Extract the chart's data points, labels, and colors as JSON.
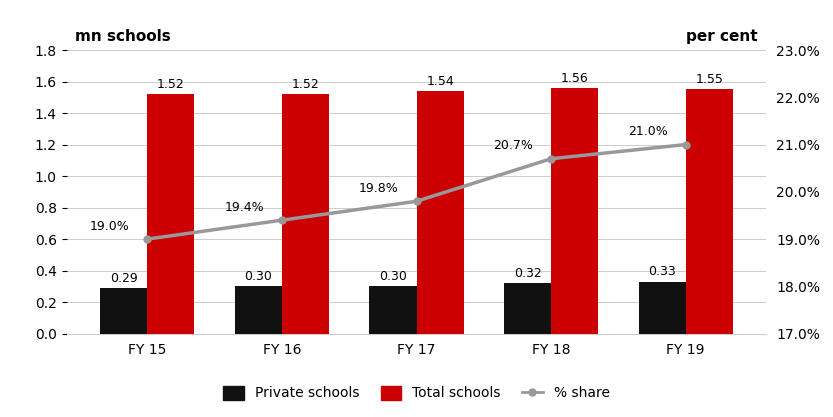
{
  "categories": [
    "FY 15",
    "FY 16",
    "FY 17",
    "FY 18",
    "FY 19"
  ],
  "private_schools": [
    0.29,
    0.3,
    0.3,
    0.32,
    0.33
  ],
  "total_schools": [
    1.52,
    1.52,
    1.54,
    1.56,
    1.55
  ],
  "pct_share": [
    19.0,
    19.4,
    19.8,
    20.7,
    21.0
  ],
  "private_color": "#111111",
  "total_color": "#cc0000",
  "line_color": "#999999",
  "label_left": "mn schools",
  "label_right": "per cent",
  "ylim_left": [
    0.0,
    1.8
  ],
  "ylim_right": [
    17.0,
    23.0
  ],
  "yticks_left": [
    0.0,
    0.2,
    0.4,
    0.6,
    0.8,
    1.0,
    1.2,
    1.4,
    1.6,
    1.8
  ],
  "yticks_right": [
    17.0,
    18.0,
    19.0,
    20.0,
    21.0,
    22.0,
    23.0
  ],
  "bar_width": 0.35,
  "private_labels": [
    "0.29",
    "0.30",
    "0.30",
    "0.32",
    "0.33"
  ],
  "total_labels": [
    "1.52",
    "1.52",
    "1.54",
    "1.56",
    "1.55"
  ],
  "pct_labels": [
    "19.0%",
    "19.4%",
    "19.8%",
    "20.7%",
    "21.0%"
  ],
  "legend_labels": [
    "Private schools",
    "Total schools",
    "% share"
  ],
  "background_color": "#ffffff",
  "grid_color": "#cccccc",
  "label_fontsize": 11,
  "tick_fontsize": 10,
  "annot_fontsize": 9
}
